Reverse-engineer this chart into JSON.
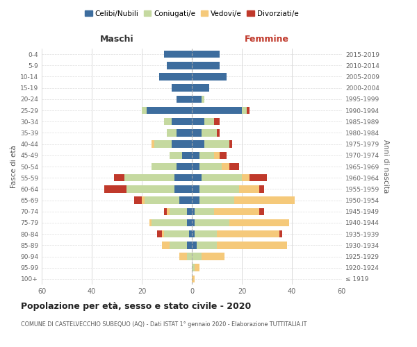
{
  "age_groups": [
    "100+",
    "95-99",
    "90-94",
    "85-89",
    "80-84",
    "75-79",
    "70-74",
    "65-69",
    "60-64",
    "55-59",
    "50-54",
    "45-49",
    "40-44",
    "35-39",
    "30-34",
    "25-29",
    "20-24",
    "15-19",
    "10-14",
    "5-9",
    "0-4"
  ],
  "birth_years": [
    "≤ 1919",
    "1920-1924",
    "1925-1929",
    "1930-1934",
    "1935-1939",
    "1940-1944",
    "1945-1949",
    "1950-1954",
    "1955-1959",
    "1960-1964",
    "1965-1969",
    "1970-1974",
    "1975-1979",
    "1980-1984",
    "1985-1989",
    "1990-1994",
    "1995-1999",
    "2000-2004",
    "2005-2009",
    "2010-2014",
    "2015-2019"
  ],
  "males_celibi": [
    0,
    0,
    0,
    2,
    1,
    2,
    2,
    5,
    7,
    7,
    6,
    4,
    8,
    6,
    8,
    18,
    6,
    8,
    13,
    10,
    11
  ],
  "males_coniugati": [
    0,
    0,
    2,
    7,
    10,
    14,
    7,
    14,
    19,
    20,
    10,
    5,
    7,
    4,
    3,
    2,
    0,
    0,
    0,
    0,
    0
  ],
  "males_vedovi": [
    0,
    0,
    3,
    3,
    1,
    1,
    1,
    1,
    0,
    0,
    0,
    0,
    1,
    0,
    0,
    0,
    0,
    0,
    0,
    0,
    0
  ],
  "males_divorziati": [
    0,
    0,
    0,
    0,
    2,
    0,
    1,
    3,
    9,
    4,
    0,
    0,
    0,
    0,
    0,
    0,
    0,
    0,
    0,
    0,
    0
  ],
  "females_nubili": [
    0,
    0,
    0,
    2,
    1,
    1,
    1,
    3,
    3,
    4,
    3,
    3,
    5,
    4,
    5,
    20,
    4,
    7,
    14,
    11,
    11
  ],
  "females_coniugate": [
    0,
    1,
    4,
    8,
    9,
    14,
    8,
    14,
    16,
    16,
    9,
    6,
    10,
    6,
    4,
    2,
    1,
    0,
    0,
    0,
    0
  ],
  "females_vedove": [
    1,
    2,
    9,
    28,
    25,
    24,
    18,
    24,
    8,
    3,
    3,
    2,
    0,
    0,
    0,
    0,
    0,
    0,
    0,
    0,
    0
  ],
  "females_divorziate": [
    0,
    0,
    0,
    0,
    1,
    0,
    2,
    0,
    2,
    7,
    4,
    3,
    1,
    1,
    2,
    1,
    0,
    0,
    0,
    0,
    0
  ],
  "color_celibi": "#3d6d9e",
  "color_coniugati": "#c5d9a0",
  "color_vedovi": "#f5c97a",
  "color_divorziati": "#c0392b",
  "xlim": 60,
  "title": "Popolazione per età, sesso e stato civile - 2020",
  "subtitle": "COMUNE DI CASTELVECCHIO SUBEQUO (AQ) - Dati ISTAT 1° gennaio 2020 - Elaborazione TUTTITALIA.IT",
  "label_maschi": "Maschi",
  "label_femmine": "Femmine",
  "label_fasce": "Fasce di età",
  "label_anni": "Anni di nascita",
  "legend_labels": [
    "Celibi/Nubili",
    "Coniugati/e",
    "Vedovi/e",
    "Divorziati/e"
  ],
  "bg_color": "#ffffff"
}
